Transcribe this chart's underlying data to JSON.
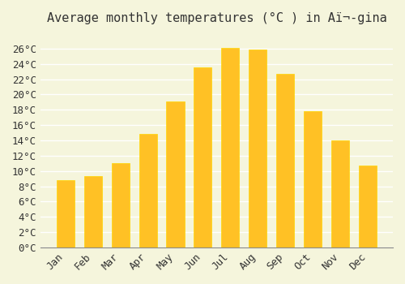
{
  "title": "Average monthly temperatures (°C ) in Aï¬­gina",
  "months": [
    "Jan",
    "Feb",
    "Mar",
    "Apr",
    "May",
    "Jun",
    "Jul",
    "Aug",
    "Sep",
    "Oct",
    "Nov",
    "Dec"
  ],
  "temperatures": [
    8.8,
    9.3,
    11.0,
    14.8,
    19.1,
    23.5,
    26.1,
    25.9,
    22.7,
    17.8,
    14.0,
    10.7
  ],
  "bar_color": "#FFC125",
  "bar_edge_color": "#FFD700",
  "background_color": "#F5F5DC",
  "grid_color": "#FFFFFF",
  "text_color": "#333333",
  "ylim": [
    0,
    28
  ],
  "ytick_interval": 2,
  "title_fontsize": 11,
  "tick_fontsize": 9,
  "font_family": "monospace"
}
